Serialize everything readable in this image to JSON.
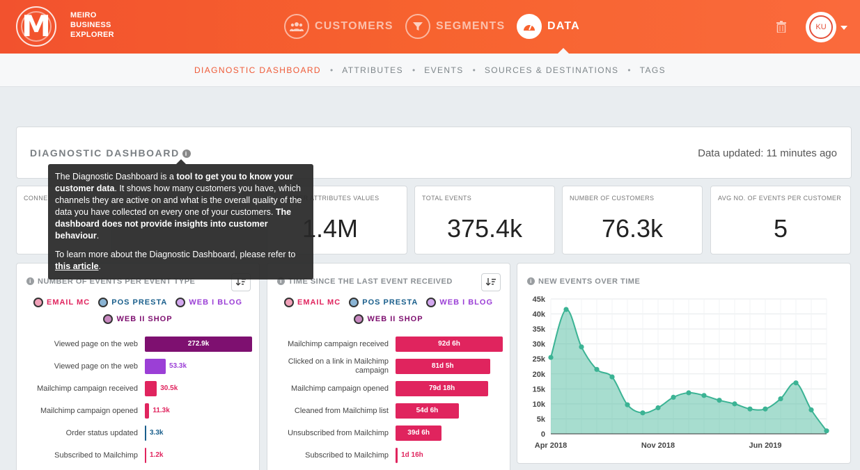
{
  "brand": {
    "line1": "MEIRO",
    "line2": "BUSINESS",
    "line3": "EXPLORER",
    "logo_letter": "M"
  },
  "nav": [
    {
      "label": "CUSTOMERS",
      "icon": "people-icon",
      "active": false
    },
    {
      "label": "SEGMENTS",
      "icon": "filter-icon",
      "active": false
    },
    {
      "label": "DATA",
      "icon": "gauge-icon",
      "active": true
    }
  ],
  "user": {
    "initials": "KU"
  },
  "subnav": [
    {
      "label": "DIAGNOSTIC DASHBOARD",
      "active": true
    },
    {
      "label": "ATTRIBUTES",
      "active": false
    },
    {
      "label": "EVENTS",
      "active": false
    },
    {
      "label": "SOURCES & DESTINATIONS",
      "active": false
    },
    {
      "label": "TAGS",
      "active": false
    }
  ],
  "dashboard": {
    "title": "DIAGNOSTIC DASHBOARD",
    "updated": "Data updated: 11 minutes ago"
  },
  "tooltip": {
    "p1_a": "The Diagnostic Dashboard is a ",
    "p1_b": "tool to get you to know your customer data",
    "p1_c": ". It shows how many customers you have, which channels they are active on and what is the overall quality of the data you have collected on every one of your customers. ",
    "p1_d": "The dashboard does not provide insights into customer behaviour",
    "p1_e": ".",
    "p2_a": "To learn more about the Diagnostic Dashboard, please refer to ",
    "p2_link": "this article",
    "p2_b": "."
  },
  "stats": [
    {
      "label": "CONNE",
      "value": ""
    },
    {
      "label": "OMER ATTRIBUTES VALUES",
      "value": "1.4M"
    },
    {
      "label": "TOTAL EVENTS",
      "value": "375.4k"
    },
    {
      "label": "NUMBER OF CUSTOMERS",
      "value": "76.3k"
    },
    {
      "label": "AVG NO. OF EVENTS PER CUSTOMER",
      "value": "5"
    }
  ],
  "legend": [
    {
      "label": "EMAIL MC",
      "color": "#e0245e",
      "fill": "#f0a0b8"
    },
    {
      "label": "POS PRESTA",
      "color": "#1a5f8c",
      "fill": "#8ab4d4"
    },
    {
      "label": "WEB I BLOG",
      "color": "#9b3fd6",
      "fill": "#d3a8ef"
    },
    {
      "label": "WEB II SHOP",
      "color": "#7e1070",
      "fill": "#c888c0"
    }
  ],
  "events_per_type": {
    "title": "NUMBER OF EVENTS PER EVENT TYPE",
    "rows": [
      {
        "label": "Viewed page on the web",
        "value": "272.9k",
        "fraction": 1.0,
        "color": "#7e1070"
      },
      {
        "label": "Viewed page on the web",
        "value": "53.3k",
        "fraction": 0.195,
        "color": "#9b3fd6"
      },
      {
        "label": "Mailchimp campaign received",
        "value": "30.5k",
        "fraction": 0.112,
        "color": "#e0245e"
      },
      {
        "label": "Mailchimp campaign opened",
        "value": "11.3k",
        "fraction": 0.041,
        "color": "#e0245e"
      },
      {
        "label": "Order status updated",
        "value": "3.3k",
        "fraction": 0.012,
        "color": "#1a5f8c"
      },
      {
        "label": "Subscribed to Mailchimp",
        "value": "1.2k",
        "fraction": 0.004,
        "color": "#e0245e"
      }
    ]
  },
  "time_since": {
    "title": "TIME SINCE THE LAST EVENT RECEIVED",
    "rows": [
      {
        "label": "Mailchimp campaign received",
        "value": "92d 6h",
        "fraction": 1.0,
        "color": "#e0245e"
      },
      {
        "label": "Clicked on a link in Mailchimp campaign",
        "value": "81d 5h",
        "fraction": 0.88,
        "color": "#e0245e"
      },
      {
        "label": "Mailchimp campaign opened",
        "value": "79d 18h",
        "fraction": 0.865,
        "color": "#e0245e"
      },
      {
        "label": "Cleaned from Mailchimp list",
        "value": "54d 6h",
        "fraction": 0.59,
        "color": "#e0245e"
      },
      {
        "label": "Unsubscribed from Mailchimp",
        "value": "39d 6h",
        "fraction": 0.43,
        "color": "#e0245e"
      },
      {
        "label": "Subscribed to Mailchimp",
        "value": "1d 16h",
        "fraction": 0.02,
        "color": "#e0245e"
      }
    ]
  },
  "chart_data": {
    "type": "area",
    "title": "NEW EVENTS OVER TIME",
    "xlabel": "",
    "ylabel": "",
    "ylim": [
      0,
      45000
    ],
    "yticks": [
      "0",
      "5k",
      "10k",
      "15k",
      "20k",
      "25k",
      "30k",
      "35k",
      "40k",
      "45k"
    ],
    "xtick_labels": [
      "Apr 2018",
      "Nov 2018",
      "Jun 2019"
    ],
    "xtick_index": [
      0,
      7,
      14
    ],
    "grid": true,
    "color": "#3bb394",
    "x": [
      "2018-04",
      "2018-05",
      "2018-06",
      "2018-07",
      "2018-08",
      "2018-09",
      "2018-10",
      "2018-11",
      "2018-12",
      "2019-01",
      "2019-02",
      "2019-03",
      "2019-04",
      "2019-05",
      "2019-06",
      "2019-07",
      "2019-08",
      "2019-09",
      "2019-10"
    ],
    "values": [
      25500,
      41500,
      29000,
      21500,
      19000,
      9700,
      7000,
      8700,
      12200,
      13700,
      12800,
      11200,
      10000,
      8300,
      8300,
      11700,
      17000,
      8000,
      1000
    ]
  }
}
